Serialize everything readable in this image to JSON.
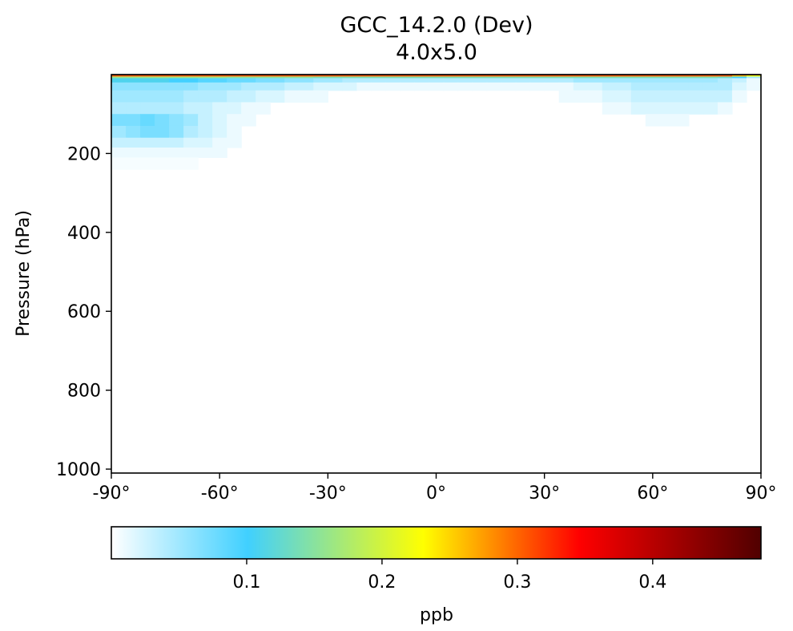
{
  "chart_data": {
    "type": "heatmap",
    "title": "GCC_14.2.0 (Dev)",
    "subtitle": "4.0x5.0",
    "xlabel": "",
    "ylabel": "Pressure (hPa)",
    "x_unit": "latitude (degrees)",
    "y_unit": "hPa",
    "xlim": [
      -90,
      90
    ],
    "ylim": [
      1010,
      0
    ],
    "x_ticks": [
      -90,
      -60,
      -30,
      0,
      30,
      60,
      90
    ],
    "x_tick_labels": [
      "-90°",
      "-60°",
      "-30°",
      "0°",
      "30°",
      "60°",
      "90°"
    ],
    "y_ticks": [
      200,
      400,
      600,
      800,
      1000
    ],
    "y_tick_labels": [
      "200",
      "400",
      "600",
      "800",
      "1000"
    ],
    "grid": false,
    "colorbar": {
      "label": "ppb",
      "min": 0.0,
      "max": 0.48,
      "ticks": [
        0.1,
        0.2,
        0.3,
        0.4
      ],
      "tick_labels": [
        "0.1",
        "0.2",
        "0.3",
        "0.4"
      ],
      "colors": [
        "#ffffff",
        "#40d0ff",
        "#ffff00",
        "#ff0000",
        "#500000"
      ],
      "orientation": "horizontal"
    },
    "cells": {
      "lat_centers": [
        -88,
        -84,
        -80,
        -76,
        -72,
        -68,
        -64,
        -60,
        -56,
        -52,
        -48,
        -44,
        -40,
        -36,
        -32,
        -28,
        -24,
        -20,
        -16,
        -12,
        -8,
        -4,
        0,
        4,
        8,
        12,
        16,
        20,
        24,
        28,
        32,
        36,
        40,
        44,
        48,
        52,
        56,
        60,
        64,
        68,
        72,
        76,
        80,
        84,
        88
      ],
      "pressure_levels": [
        {
          "p_top": 0,
          "p_bot": 2,
          "values": [
            0.46,
            0.46,
            0.46,
            0.46,
            0.46,
            0.46,
            0.46,
            0.46,
            0.46,
            0.46,
            0.46,
            0.46,
            0.46,
            0.46,
            0.46,
            0.46,
            0.46,
            0.46,
            0.46,
            0.46,
            0.46,
            0.46,
            0.46,
            0.46,
            0.46,
            0.46,
            0.46,
            0.46,
            0.46,
            0.46,
            0.46,
            0.46,
            0.46,
            0.46,
            0.46,
            0.46,
            0.46,
            0.46,
            0.46,
            0.46,
            0.46,
            0.46,
            0.46,
            0.46,
            0.46
          ]
        },
        {
          "p_top": 2,
          "p_bot": 5,
          "values": [
            0.3,
            0.3,
            0.3,
            0.3,
            0.3,
            0.3,
            0.3,
            0.3,
            0.3,
            0.3,
            0.3,
            0.3,
            0.3,
            0.3,
            0.3,
            0.3,
            0.3,
            0.3,
            0.3,
            0.3,
            0.3,
            0.3,
            0.3,
            0.3,
            0.3,
            0.3,
            0.3,
            0.3,
            0.3,
            0.3,
            0.3,
            0.3,
            0.3,
            0.3,
            0.3,
            0.3,
            0.3,
            0.3,
            0.3,
            0.3,
            0.3,
            0.3,
            0.3,
            0.26,
            0.22
          ]
        },
        {
          "p_top": 5,
          "p_bot": 9,
          "values": [
            0.16,
            0.16,
            0.16,
            0.16,
            0.16,
            0.16,
            0.16,
            0.16,
            0.15,
            0.15,
            0.15,
            0.15,
            0.15,
            0.15,
            0.14,
            0.14,
            0.14,
            0.14,
            0.14,
            0.14,
            0.14,
            0.14,
            0.14,
            0.14,
            0.14,
            0.14,
            0.14,
            0.14,
            0.14,
            0.14,
            0.14,
            0.14,
            0.14,
            0.14,
            0.14,
            0.14,
            0.14,
            0.14,
            0.14,
            0.14,
            0.14,
            0.14,
            0.13,
            0.1,
            0.05
          ]
        },
        {
          "p_top": 9,
          "p_bot": 20,
          "values": [
            0.11,
            0.11,
            0.11,
            0.11,
            0.1,
            0.1,
            0.09,
            0.09,
            0.08,
            0.08,
            0.07,
            0.07,
            0.06,
            0.06,
            0.05,
            0.05,
            0.04,
            0.04,
            0.04,
            0.04,
            0.04,
            0.04,
            0.04,
            0.04,
            0.04,
            0.04,
            0.04,
            0.04,
            0.04,
            0.04,
            0.04,
            0.04,
            0.05,
            0.05,
            0.05,
            0.05,
            0.05,
            0.05,
            0.05,
            0.05,
            0.05,
            0.05,
            0.04,
            0.03,
            0.01
          ]
        },
        {
          "p_top": 20,
          "p_bot": 40,
          "values": [
            0.06,
            0.06,
            0.06,
            0.06,
            0.06,
            0.06,
            0.05,
            0.05,
            0.05,
            0.04,
            0.04,
            0.04,
            0.03,
            0.03,
            0.02,
            0.02,
            0.02,
            0.01,
            0.01,
            0.01,
            0.01,
            0.01,
            0.01,
            0.01,
            0.01,
            0.01,
            0.01,
            0.01,
            0.01,
            0.01,
            0.01,
            0.01,
            0.02,
            0.02,
            0.03,
            0.03,
            0.04,
            0.04,
            0.04,
            0.04,
            0.04,
            0.04,
            0.04,
            0.02,
            0.01
          ]
        },
        {
          "p_top": 40,
          "p_bot": 70,
          "values": [
            0.05,
            0.05,
            0.05,
            0.05,
            0.05,
            0.04,
            0.04,
            0.04,
            0.03,
            0.03,
            0.02,
            0.02,
            0.01,
            0.01,
            0.01,
            0.0,
            0.0,
            0.0,
            0.0,
            0.0,
            0.0,
            0.0,
            0.0,
            0.0,
            0.0,
            0.0,
            0.0,
            0.0,
            0.0,
            0.0,
            0.0,
            0.01,
            0.01,
            0.01,
            0.02,
            0.02,
            0.03,
            0.03,
            0.03,
            0.03,
            0.03,
            0.03,
            0.03,
            0.01,
            0.0
          ]
        },
        {
          "p_top": 70,
          "p_bot": 100,
          "values": [
            0.04,
            0.04,
            0.04,
            0.04,
            0.04,
            0.03,
            0.03,
            0.02,
            0.02,
            0.01,
            0.01,
            0.0,
            0.0,
            0.0,
            0.0,
            0.0,
            0.0,
            0.0,
            0.0,
            0.0,
            0.0,
            0.0,
            0.0,
            0.0,
            0.0,
            0.0,
            0.0,
            0.0,
            0.0,
            0.0,
            0.0,
            0.0,
            0.0,
            0.0,
            0.01,
            0.01,
            0.02,
            0.02,
            0.02,
            0.02,
            0.02,
            0.02,
            0.01,
            0.0,
            0.0
          ]
        },
        {
          "p_top": 100,
          "p_bot": 130,
          "values": [
            0.07,
            0.07,
            0.08,
            0.07,
            0.06,
            0.05,
            0.03,
            0.02,
            0.01,
            0.01,
            0.0,
            0.0,
            0.0,
            0.0,
            0.0,
            0.0,
            0.0,
            0.0,
            0.0,
            0.0,
            0.0,
            0.0,
            0.0,
            0.0,
            0.0,
            0.0,
            0.0,
            0.0,
            0.0,
            0.0,
            0.0,
            0.0,
            0.0,
            0.0,
            0.0,
            0.0,
            0.0,
            0.01,
            0.01,
            0.01,
            0.0,
            0.0,
            0.0,
            0.0,
            0.0
          ]
        },
        {
          "p_top": 130,
          "p_bot": 160,
          "values": [
            0.05,
            0.06,
            0.07,
            0.07,
            0.06,
            0.04,
            0.03,
            0.02,
            0.01,
            0.0,
            0.0,
            0.0,
            0.0,
            0.0,
            0.0,
            0.0,
            0.0,
            0.0,
            0.0,
            0.0,
            0.0,
            0.0,
            0.0,
            0.0,
            0.0,
            0.0,
            0.0,
            0.0,
            0.0,
            0.0,
            0.0,
            0.0,
            0.0,
            0.0,
            0.0,
            0.0,
            0.0,
            0.0,
            0.0,
            0.0,
            0.0,
            0.0,
            0.0,
            0.0,
            0.0
          ]
        },
        {
          "p_top": 160,
          "p_bot": 185,
          "values": [
            0.03,
            0.03,
            0.03,
            0.03,
            0.03,
            0.02,
            0.02,
            0.01,
            0.01,
            0.0,
            0.0,
            0.0,
            0.0,
            0.0,
            0.0,
            0.0,
            0.0,
            0.0,
            0.0,
            0.0,
            0.0,
            0.0,
            0.0,
            0.0,
            0.0,
            0.0,
            0.0,
            0.0,
            0.0,
            0.0,
            0.0,
            0.0,
            0.0,
            0.0,
            0.0,
            0.0,
            0.0,
            0.0,
            0.0,
            0.0,
            0.0,
            0.0,
            0.0,
            0.0,
            0.0
          ]
        },
        {
          "p_top": 185,
          "p_bot": 210,
          "values": [
            0.01,
            0.01,
            0.01,
            0.01,
            0.01,
            0.01,
            0.01,
            0.01,
            0.0,
            0.0,
            0.0,
            0.0,
            0.0,
            0.0,
            0.0,
            0.0,
            0.0,
            0.0,
            0.0,
            0.0,
            0.0,
            0.0,
            0.0,
            0.0,
            0.0,
            0.0,
            0.0,
            0.0,
            0.0,
            0.0,
            0.0,
            0.0,
            0.0,
            0.0,
            0.0,
            0.0,
            0.0,
            0.0,
            0.0,
            0.0,
            0.0,
            0.0,
            0.0,
            0.0,
            0.0
          ]
        },
        {
          "p_top": 210,
          "p_bot": 240,
          "values": [
            0.005,
            0.005,
            0.005,
            0.005,
            0.005,
            0.005,
            0.0,
            0.0,
            0.0,
            0.0,
            0.0,
            0.0,
            0.0,
            0.0,
            0.0,
            0.0,
            0.0,
            0.0,
            0.0,
            0.0,
            0.0,
            0.0,
            0.0,
            0.0,
            0.0,
            0.0,
            0.0,
            0.0,
            0.0,
            0.0,
            0.0,
            0.0,
            0.0,
            0.0,
            0.0,
            0.0,
            0.0,
            0.0,
            0.0,
            0.0,
            0.0,
            0.0,
            0.0,
            0.0,
            0.0
          ]
        }
      ]
    }
  }
}
